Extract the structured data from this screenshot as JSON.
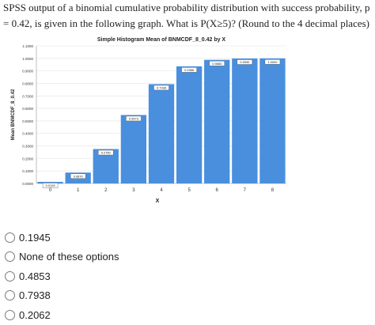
{
  "question": {
    "text": "SPSS output of a binomial cumulative probability distribution with success probability, p = 0.42, is given in the following graph. What is P(X≥5)? (Round to the 4 decimal places)"
  },
  "chart_data": {
    "type": "bar",
    "title": "Simple Histogram Mean of BNMCDF_8_0.42 by X",
    "xlabel": "X",
    "ylabel": "Mean BNMCDF_8_0.42",
    "categories": [
      "0",
      "1",
      "2",
      "3",
      "4",
      "5",
      "6",
      "7",
      "8"
    ],
    "values": [
      0.0128,
      0.087,
      0.275,
      0.5473,
      0.7938,
      0.9366,
      0.9883,
      0.999,
      1.0
    ],
    "data_labels": [
      "0.0128",
      "0.0870",
      "0.2750",
      "0.5473",
      "0.7938",
      "0.9366",
      "0.9883",
      "0.9990",
      "1.0000"
    ],
    "ylim": [
      0,
      1.1
    ],
    "yticks": [
      "0.0000",
      "0.1000",
      "0.2000",
      "0.3000",
      "0.4000",
      "0.5000",
      "0.6000",
      "0.7000",
      "0.8000",
      "0.9000",
      "1.0000",
      "1.1000"
    ],
    "bar_color": "#4a8fde",
    "grid": true
  },
  "options": [
    {
      "label": "0.1945"
    },
    {
      "label": "None of these options"
    },
    {
      "label": "0.4853"
    },
    {
      "label": "0.7938"
    },
    {
      "label": "0.2062"
    }
  ]
}
